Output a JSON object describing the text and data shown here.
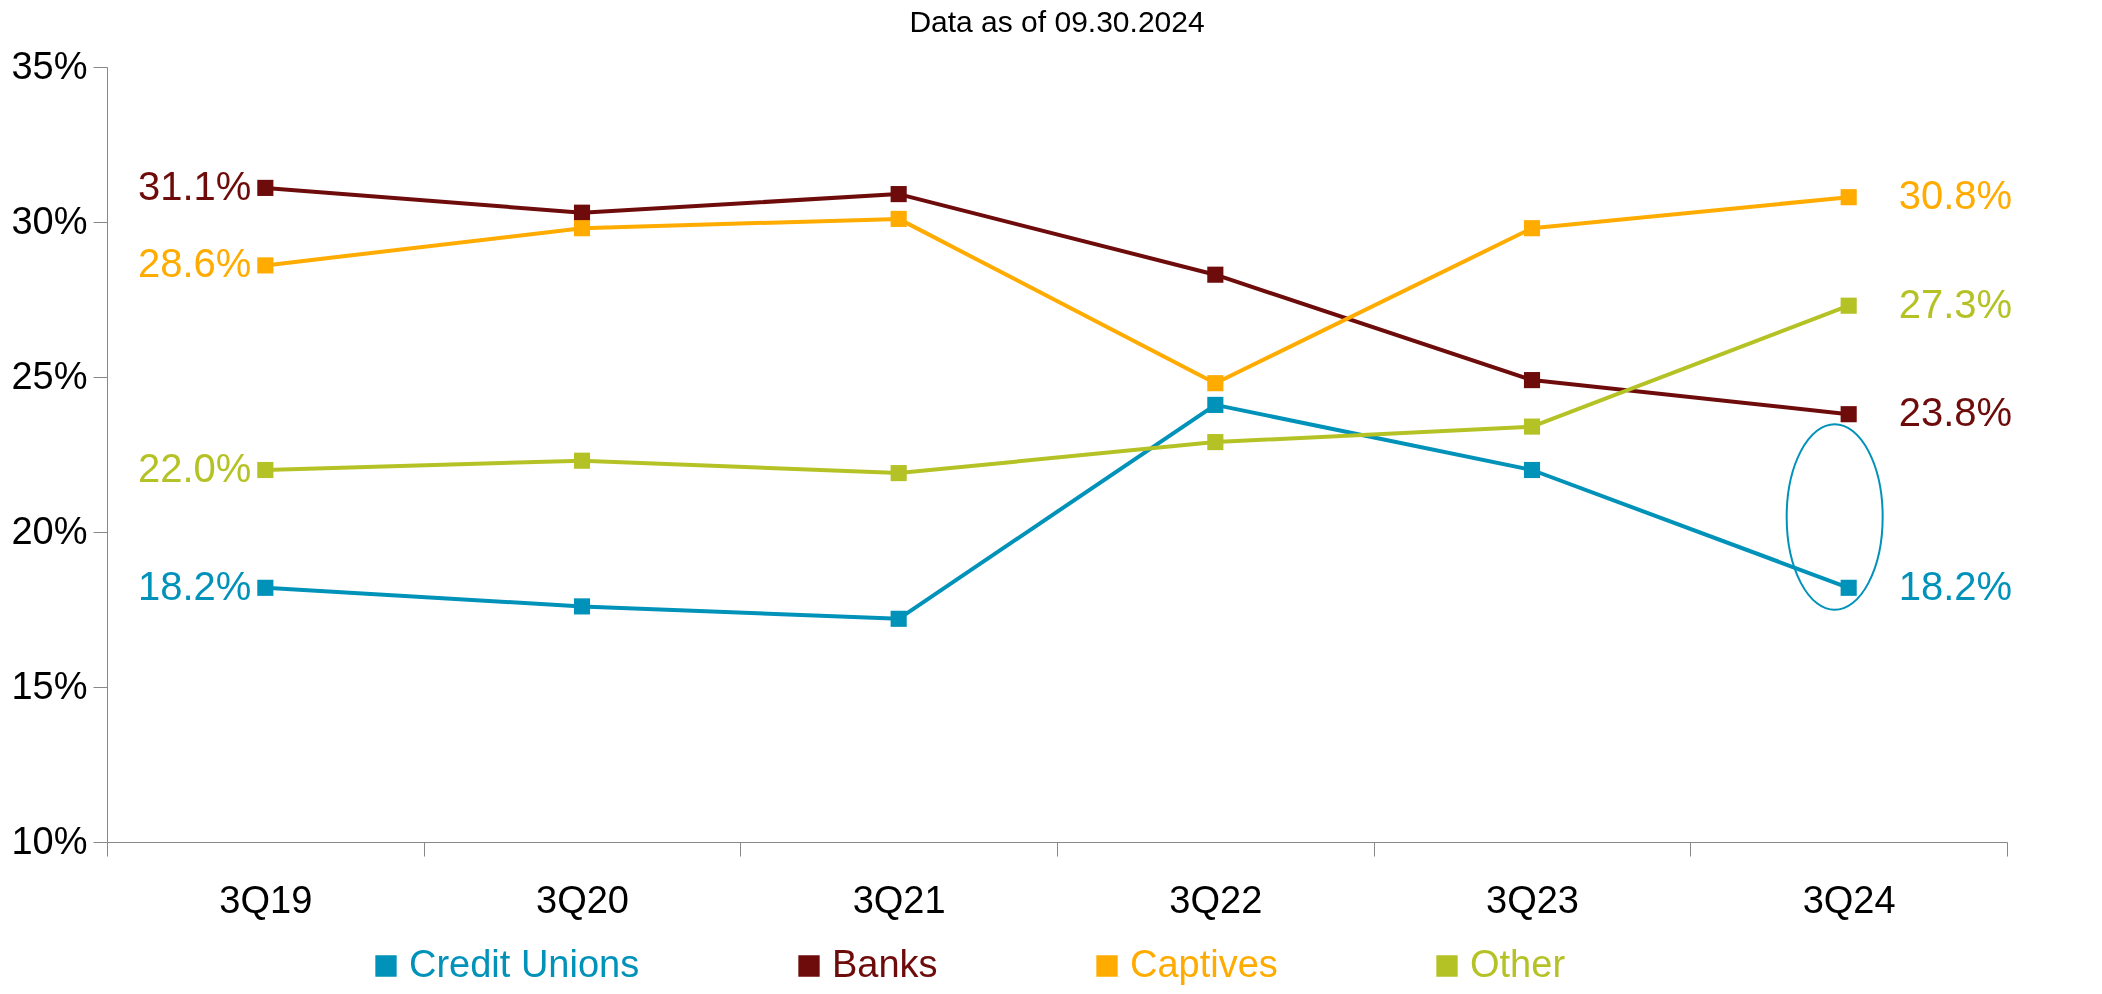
{
  "chart_data": {
    "type": "line",
    "title": "Data as of 09.30.2024",
    "categories": [
      "3Q19",
      "3Q20",
      "3Q21",
      "3Q22",
      "3Q23",
      "3Q24"
    ],
    "series": [
      {
        "name": "Credit Unions",
        "color": "#0092b9",
        "values": [
          18.2,
          17.6,
          17.2,
          24.1,
          22.0,
          18.2
        ],
        "value_labels": [
          "18.2%",
          null,
          null,
          null,
          null,
          "18.2%"
        ]
      },
      {
        "name": "Banks",
        "color": "#6e0b0b",
        "values": [
          31.1,
          30.3,
          30.9,
          28.3,
          24.9,
          23.8
        ],
        "value_labels": [
          "31.1%",
          null,
          null,
          null,
          null,
          "23.8%"
        ]
      },
      {
        "name": "Captives",
        "color": "#ffab00",
        "values": [
          28.6,
          29.8,
          30.1,
          24.8,
          29.8,
          30.8
        ],
        "value_labels": [
          "28.6%",
          null,
          null,
          null,
          null,
          "30.8%"
        ]
      },
      {
        "name": "Other",
        "color": "#b5c225",
        "values": [
          22.0,
          22.3,
          21.9,
          22.9,
          23.4,
          27.3
        ],
        "value_labels": [
          "22.0%",
          null,
          null,
          null,
          null,
          "27.3%"
        ]
      }
    ],
    "ylim": [
      10,
      35
    ],
    "yticks": [
      {
        "value": 10,
        "label": "10%"
      },
      {
        "value": 15,
        "label": "15%"
      },
      {
        "value": 20,
        "label": "20%"
      },
      {
        "value": 25,
        "label": "25%"
      },
      {
        "value": 30,
        "label": "30%"
      },
      {
        "value": 35,
        "label": "35%"
      }
    ],
    "grid": false,
    "legend": "bottom",
    "marker": "square",
    "line_style": "solid"
  }
}
